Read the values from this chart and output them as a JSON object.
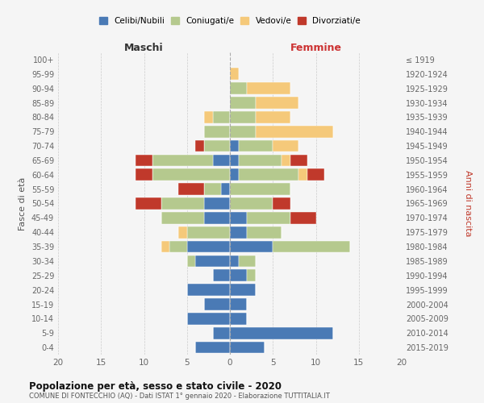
{
  "age_groups": [
    "0-4",
    "5-9",
    "10-14",
    "15-19",
    "20-24",
    "25-29",
    "30-34",
    "35-39",
    "40-44",
    "45-49",
    "50-54",
    "55-59",
    "60-64",
    "65-69",
    "70-74",
    "75-79",
    "80-84",
    "85-89",
    "90-94",
    "95-99",
    "100+"
  ],
  "birth_years": [
    "2015-2019",
    "2010-2014",
    "2005-2009",
    "2000-2004",
    "1995-1999",
    "1990-1994",
    "1985-1989",
    "1980-1984",
    "1975-1979",
    "1970-1974",
    "1965-1969",
    "1960-1964",
    "1955-1959",
    "1950-1954",
    "1945-1949",
    "1940-1944",
    "1935-1939",
    "1930-1934",
    "1925-1929",
    "1920-1924",
    "≤ 1919"
  ],
  "males": {
    "celibi": [
      4,
      2,
      5,
      3,
      5,
      2,
      4,
      5,
      0,
      3,
      3,
      1,
      0,
      2,
      0,
      0,
      0,
      0,
      0,
      0,
      0
    ],
    "coniugati": [
      0,
      0,
      0,
      0,
      0,
      0,
      1,
      2,
      5,
      5,
      5,
      2,
      9,
      7,
      3,
      3,
      2,
      0,
      0,
      0,
      0
    ],
    "vedovi": [
      0,
      0,
      0,
      0,
      0,
      0,
      0,
      1,
      1,
      0,
      0,
      0,
      0,
      0,
      0,
      0,
      1,
      0,
      0,
      0,
      0
    ],
    "divorziati": [
      0,
      0,
      0,
      0,
      0,
      0,
      0,
      0,
      0,
      0,
      3,
      3,
      2,
      2,
      1,
      0,
      0,
      0,
      0,
      0,
      0
    ]
  },
  "females": {
    "nubili": [
      4,
      12,
      2,
      2,
      3,
      2,
      1,
      5,
      2,
      2,
      0,
      0,
      1,
      1,
      1,
      0,
      0,
      0,
      0,
      0,
      0
    ],
    "coniugate": [
      0,
      0,
      0,
      0,
      0,
      1,
      2,
      9,
      4,
      5,
      5,
      7,
      7,
      5,
      4,
      3,
      3,
      3,
      2,
      0,
      0
    ],
    "vedove": [
      0,
      0,
      0,
      0,
      0,
      0,
      0,
      0,
      0,
      0,
      0,
      0,
      1,
      1,
      3,
      9,
      4,
      5,
      5,
      1,
      0
    ],
    "divorziate": [
      0,
      0,
      0,
      0,
      0,
      0,
      0,
      0,
      0,
      3,
      2,
      0,
      2,
      2,
      0,
      0,
      0,
      0,
      0,
      0,
      0
    ]
  },
  "colors": {
    "celibi": "#4a7ab5",
    "coniugati": "#b5c98e",
    "vedovi": "#f5c97a",
    "divorziati": "#c0392b"
  },
  "xlim": [
    -20,
    20
  ],
  "xticks": [
    -20,
    -15,
    -10,
    -5,
    0,
    5,
    10,
    15,
    20
  ],
  "title": "Popolazione per età, sesso e stato civile - 2020",
  "subtitle": "COMUNE DI FONTECCHIO (AQ) - Dati ISTAT 1° gennaio 2020 - Elaborazione TUTTITALIA.IT",
  "ylabel_left": "Fasce di età",
  "ylabel_right": "Anni di nascita",
  "xlabel_left": "Maschi",
  "xlabel_right": "Femmine",
  "legend_labels": [
    "Celibi/Nubili",
    "Coniugati/e",
    "Vedovi/e",
    "Divorziati/e"
  ],
  "background_color": "#f5f5f5"
}
